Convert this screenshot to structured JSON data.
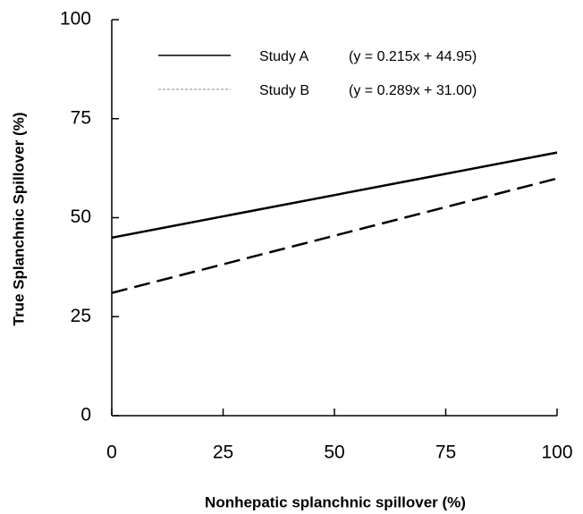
{
  "chart_data": {
    "type": "line",
    "x_label": "Nonhepatic splanchnic spillover (%)",
    "y_label": "True Splanchnic Spillover (%)",
    "x": [
      0,
      100
    ],
    "series": [
      {
        "name": "Study A",
        "equation": "(y = 0.215x + 44.95)",
        "color": "#000000",
        "dash": "solid",
        "values": [
          44.95,
          66.45
        ]
      },
      {
        "name": "Study B",
        "equation": "(y = 0.289x + 31.00)",
        "color": "#000000",
        "dash": "dashed",
        "values": [
          31.0,
          59.9
        ]
      }
    ],
    "xlim": [
      0,
      100
    ],
    "xticks": [
      0,
      25,
      50,
      75,
      100
    ],
    "ylim": [
      0,
      100
    ],
    "yticks": [
      0,
      25,
      50,
      75,
      100
    ],
    "grid": false,
    "legend": "top"
  }
}
